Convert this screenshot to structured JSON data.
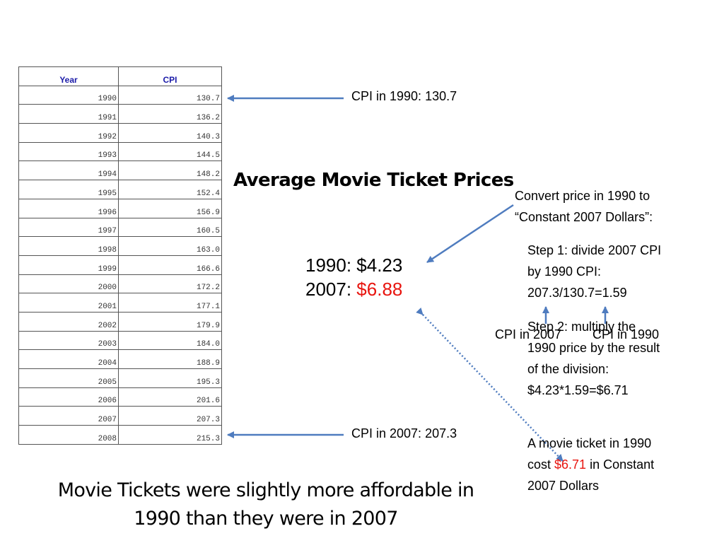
{
  "table": {
    "headers": [
      "Year",
      "CPI"
    ],
    "rows": [
      [
        "1990",
        "130.7"
      ],
      [
        "1991",
        "136.2"
      ],
      [
        "1992",
        "140.3"
      ],
      [
        "1993",
        "144.5"
      ],
      [
        "1994",
        "148.2"
      ],
      [
        "1995",
        "152.4"
      ],
      [
        "1996",
        "156.9"
      ],
      [
        "1997",
        "160.5"
      ],
      [
        "1998",
        "163.0"
      ],
      [
        "1999",
        "166.6"
      ],
      [
        "2000",
        "172.2"
      ],
      [
        "2001",
        "177.1"
      ],
      [
        "2002",
        "179.9"
      ],
      [
        "2003",
        "184.0"
      ],
      [
        "2004",
        "188.9"
      ],
      [
        "2005",
        "195.3"
      ],
      [
        "2006",
        "201.6"
      ],
      [
        "2007",
        "207.3"
      ],
      [
        "2008",
        "215.3"
      ]
    ]
  },
  "callouts": {
    "cpi_1990": "CPI in 1990: 130.7",
    "cpi_2007": "CPI in 2007: 207.3"
  },
  "heading": "Average Movie Ticket Prices",
  "prices": {
    "line_1990": "1990: $4.23",
    "label_2007": "2007: ",
    "value_2007": "$6.88"
  },
  "convert": {
    "line1": "Convert price in 1990 to",
    "line2": "“Constant 2007 Dollars”:"
  },
  "step1": {
    "line1": "Step 1: divide 2007 CPI",
    "line2": "by 1990 CPI:",
    "line3": "207.3/130.7=1.59"
  },
  "step2": {
    "line1": "Step 2: multiply the",
    "line2": "1990 price  by the result",
    "line3": "of the division:",
    "line4": "$4.23*1.59=$6.71"
  },
  "cpi_labels": {
    "cpi_2007": "CPI in 2007",
    "cpi_1990": "CPI in 1990"
  },
  "result": {
    "line1": "A movie ticket in 1990",
    "prefix": "cost ",
    "value": "$6.71",
    "suffix": " in Constant",
    "line3": "2007 Dollars"
  },
  "conclusion": {
    "line1": "Movie Tickets were slightly more affordable in",
    "line2": "1990 than they were in 2007"
  },
  "colors": {
    "arrow": "#4f7cbf",
    "highlight": "#e8150f",
    "table_header": "#1a1aa8"
  }
}
